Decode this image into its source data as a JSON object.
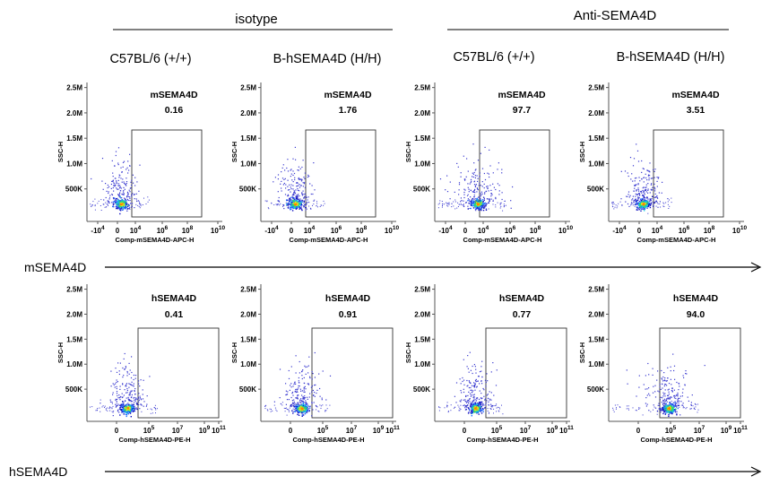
{
  "groups": [
    "isotype",
    "Anti-SEMA4D"
  ],
  "strains": [
    "C57BL/6 (+/+)",
    "B-hSEMA4D (H/H)",
    "C57BL/6 (+/+)",
    "B-hSEMA4D (H/H)"
  ],
  "row_labels": [
    "mSEMA4D",
    "hSEMA4D"
  ],
  "colors": {
    "density": [
      "#1010c0",
      "#1e6cff",
      "#18c8e8",
      "#30e060",
      "#e8e020",
      "#ff8000"
    ],
    "sparse": "#3a3ad0"
  },
  "chart_data": [
    {
      "type": "scatter",
      "group": "isotype",
      "strain": "C57BL/6 (+/+)",
      "gate_name": "mSEMA4D",
      "gate_value": "0.16",
      "xlabel": "Comp-mSEMA4D-APC-H",
      "ylabel": "SSC-H",
      "x_ticks": [
        "-10^4",
        "0",
        "10^4",
        "10^6",
        "10^8",
        "10^10"
      ],
      "y_ticks": [
        "500K",
        "1.0M",
        "1.5M",
        "2.0M",
        "2.5M"
      ],
      "ylim": [
        0,
        2600000
      ]
    },
    {
      "type": "scatter",
      "group": "isotype",
      "strain": "B-hSEMA4D (H/H)",
      "gate_name": "mSEMA4D",
      "gate_value": "1.76",
      "xlabel": "Comp-mSEMA4D-APC-H",
      "ylabel": "SSC-H",
      "x_ticks": [
        "-10^4",
        "0",
        "10^4",
        "10^6",
        "10^8",
        "10^10"
      ],
      "y_ticks": [
        "500K",
        "1.0M",
        "1.5M",
        "2.0M",
        "2.5M"
      ],
      "ylim": [
        0,
        2600000
      ]
    },
    {
      "type": "scatter",
      "group": "Anti-SEMA4D",
      "strain": "C57BL/6 (+/+)",
      "gate_name": "mSEMA4D",
      "gate_value": "97.7",
      "xlabel": "Comp-mSEMA4D-APC-H",
      "ylabel": "SSC-H",
      "x_ticks": [
        "-10^4",
        "0",
        "10^4",
        "10^6",
        "10^8",
        "10^10"
      ],
      "y_ticks": [
        "500K",
        "1.0M",
        "1.5M",
        "2.0M",
        "2.5M"
      ],
      "ylim": [
        0,
        2600000
      ]
    },
    {
      "type": "scatter",
      "group": "Anti-SEMA4D",
      "strain": "B-hSEMA4D (H/H)",
      "gate_name": "mSEMA4D",
      "gate_value": "3.51",
      "xlabel": "Comp-mSEMA4D-APC-H",
      "ylabel": "SSC-H",
      "x_ticks": [
        "-10^4",
        "0",
        "10^4",
        "10^6",
        "10^8",
        "10^10"
      ],
      "y_ticks": [
        "500K",
        "1.0M",
        "1.5M",
        "2.0M",
        "2.5M"
      ],
      "ylim": [
        0,
        2600000
      ]
    },
    {
      "type": "scatter",
      "group": "isotype",
      "strain": "C57BL/6 (+/+)",
      "gate_name": "hSEMA4D",
      "gate_value": "0.41",
      "xlabel": "Comp-hSEMA4D-PE-H",
      "ylabel": "SSC-H",
      "x_ticks": [
        "0",
        "10^5",
        "10^7",
        "10^9",
        "10^11"
      ],
      "y_ticks": [
        "500K",
        "1.0M",
        "1.5M",
        "2.0M",
        "2.5M"
      ],
      "ylim": [
        0,
        2600000
      ]
    },
    {
      "type": "scatter",
      "group": "isotype",
      "strain": "B-hSEMA4D (H/H)",
      "gate_name": "hSEMA4D",
      "gate_value": "0.91",
      "xlabel": "Comp-hSEMA4D-PE-H",
      "ylabel": "SSC-H",
      "x_ticks": [
        "0",
        "10^5",
        "10^7",
        "10^9",
        "10^11"
      ],
      "y_ticks": [
        "500K",
        "1.0M",
        "1.5M",
        "2.0M",
        "2.5M"
      ],
      "ylim": [
        0,
        2600000
      ]
    },
    {
      "type": "scatter",
      "group": "Anti-SEMA4D",
      "strain": "C57BL/6 (+/+)",
      "gate_name": "hSEMA4D",
      "gate_value": "0.77",
      "xlabel": "Comp-hSEMA4D-PE-H",
      "ylabel": "SSC-H",
      "x_ticks": [
        "0",
        "10^5",
        "10^7",
        "10^9",
        "10^11"
      ],
      "y_ticks": [
        "500K",
        "1.0M",
        "1.5M",
        "2.0M",
        "2.5M"
      ],
      "ylim": [
        0,
        2600000
      ]
    },
    {
      "type": "scatter",
      "group": "Anti-SEMA4D",
      "strain": "B-hSEMA4D (H/H)",
      "gate_name": "hSEMA4D",
      "gate_value": "94.0",
      "xlabel": "Comp-hSEMA4D-PE-H",
      "ylabel": "SSC-H",
      "x_ticks": [
        "0",
        "10^5",
        "10^7",
        "10^9",
        "10^11"
      ],
      "y_ticks": [
        "500K",
        "1.0M",
        "1.5M",
        "2.0M",
        "2.5M"
      ],
      "ylim": [
        0,
        2600000
      ]
    }
  ]
}
